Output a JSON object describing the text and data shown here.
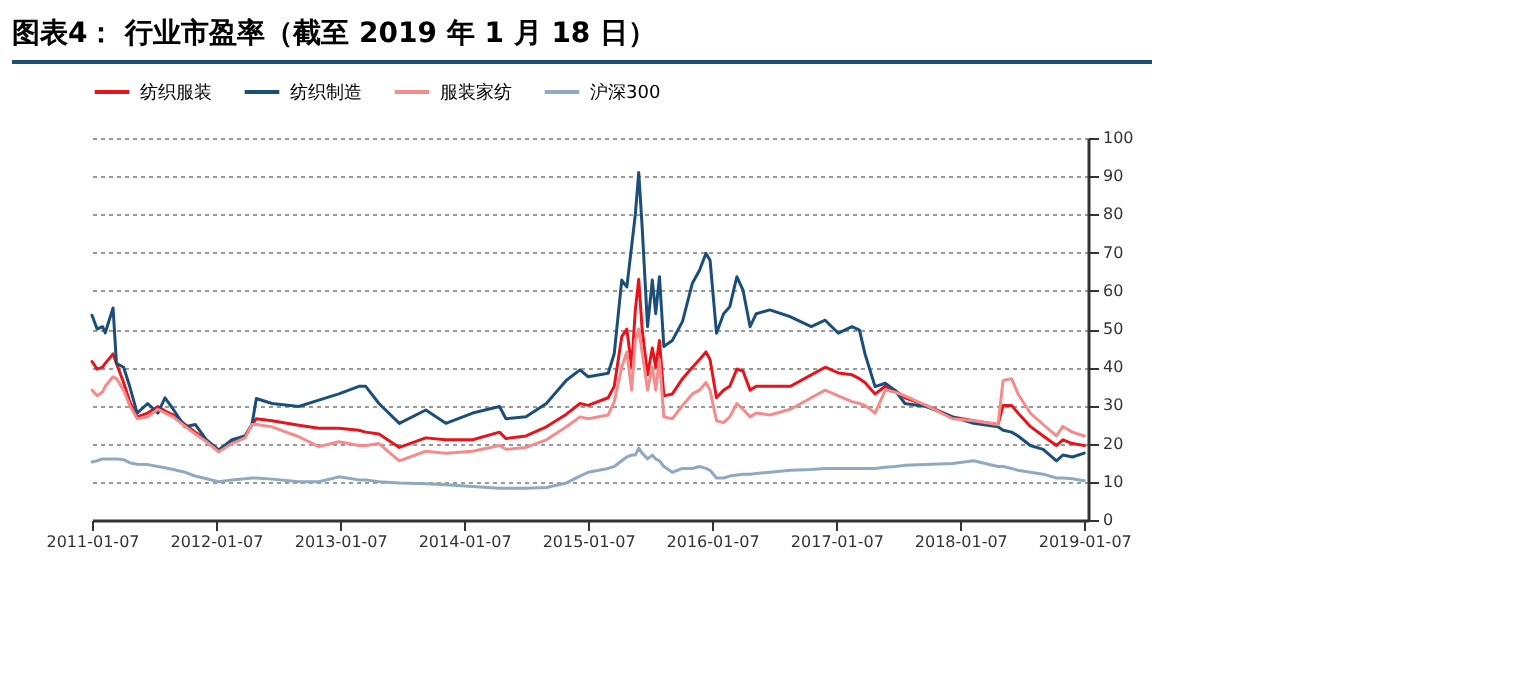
{
  "chart_data": {
    "type": "line",
    "title": "图表4： 行业市盈率（截至 2019 年 1 月 18 日）",
    "x": [
      "2011-01-07",
      "2011-01-22",
      "2011-02-07",
      "2011-02-15",
      "2011-03-10",
      "2011-03-20",
      "2011-04-10",
      "2011-04-28",
      "2011-05-20",
      "2011-06-20",
      "2011-07-20",
      "2011-08-10",
      "2011-09-03",
      "2011-10-08",
      "2011-11-07",
      "2011-12-10",
      "2012-01-15",
      "2012-02-23",
      "2012-04-02",
      "2012-04-22",
      "2012-05-05",
      "2012-06-20",
      "2012-09-07",
      "2012-11-05",
      "2013-01-03",
      "2013-03-03",
      "2013-03-23",
      "2013-05-01",
      "2013-06-30",
      "2013-09-16",
      "2013-11-14",
      "2014-02-01",
      "2014-04-21",
      "2014-05-10",
      "2014-07-08",
      "2014-09-06",
      "2014-11-04",
      "2014-12-14",
      "2015-01-07",
      "2015-03-07",
      "2015-03-25",
      "2015-04-16",
      "2015-05-01",
      "2015-05-15",
      "2015-05-26",
      "2015-06-05",
      "2015-06-15",
      "2015-07-01",
      "2015-07-15",
      "2015-07-25",
      "2015-08-05",
      "2015-08-18",
      "2015-09-12",
      "2015-10-12",
      "2015-11-10",
      "2015-12-01",
      "2015-12-20",
      "2016-01-01",
      "2016-01-20",
      "2016-02-10",
      "2016-02-28",
      "2016-03-20",
      "2016-04-07",
      "2016-04-28",
      "2016-05-16",
      "2016-06-25",
      "2016-08-25",
      "2016-10-25",
      "2016-12-05",
      "2017-01-13",
      "2017-02-22",
      "2017-03-16",
      "2017-04-01",
      "2017-05-01",
      "2017-05-31",
      "2017-06-28",
      "2017-07-28",
      "2017-09-28",
      "2017-12-15",
      "2018-02-15",
      "2018-04-28",
      "2018-05-13",
      "2018-06-07",
      "2018-06-26",
      "2018-08-01",
      "2018-09-08",
      "2018-10-17",
      "2018-11-05",
      "2018-12-03",
      "2019-01-07"
    ],
    "series": [
      {
        "name": "纺织服装",
        "color": "#e8141b",
        "values": [
          41.5,
          39.5,
          40,
          41,
          43.5,
          41,
          36,
          31,
          27,
          28,
          29.7,
          28.5,
          27.5,
          25,
          23,
          21,
          18.3,
          20.5,
          22,
          25,
          26.5,
          26,
          24.8,
          24,
          24,
          23.5,
          23,
          22.5,
          19,
          21.5,
          21,
          21,
          23,
          21.3,
          22,
          24.4,
          27.7,
          30.5,
          30,
          32,
          35,
          48,
          50,
          40,
          55,
          63,
          50,
          38,
          45,
          40,
          47,
          32.5,
          33,
          37,
          40,
          42,
          44,
          42,
          32,
          34,
          35,
          39.5,
          39,
          34,
          35,
          35,
          35,
          38,
          40,
          38.5,
          38,
          37,
          36,
          33,
          35,
          34,
          32,
          30,
          27,
          26,
          25,
          30,
          30,
          28,
          24.5,
          22,
          19.5,
          21,
          20,
          19.5
        ]
      },
      {
        "name": "纺织制造",
        "color": "#1b4f7a",
        "values": [
          53.6,
          50,
          50.6,
          49,
          55.5,
          41,
          40,
          35,
          28,
          30.5,
          28,
          32,
          29,
          24.4,
          25,
          21,
          18.3,
          21,
          22,
          25,
          31.8,
          30.5,
          29.7,
          31.4,
          33,
          35,
          35,
          30.5,
          25.3,
          28.8,
          25.3,
          28,
          29.7,
          26.5,
          27,
          30.5,
          36.6,
          39.3,
          37.5,
          38.4,
          43.6,
          62.8,
          61,
          71.6,
          80,
          91,
          76.8,
          50.6,
          62.8,
          54,
          63.7,
          45.4,
          47,
          52,
          62,
          65.4,
          69.8,
          68,
          48.9,
          54,
          55.8,
          63.7,
          60.2,
          50.6,
          54,
          55,
          53.2,
          50.6,
          52.3,
          48.9,
          50.6,
          49.7,
          43.6,
          34.9,
          35.8,
          34,
          30.5,
          29.7,
          27,
          25.3,
          24.4,
          23.5,
          23,
          22,
          19.5,
          18.5,
          15.5,
          17,
          16.5,
          17.5
        ]
      },
      {
        "name": "服装家纺",
        "color": "#f58b8b",
        "values": [
          34,
          32.5,
          33.5,
          35,
          37.5,
          37,
          34,
          30,
          26.5,
          27,
          29,
          28,
          27,
          24.5,
          22.5,
          20.5,
          17.8,
          20,
          21.5,
          25,
          25,
          24.4,
          21.8,
          19.2,
          20.5,
          19.5,
          19.5,
          20,
          15.5,
          18,
          17.5,
          18,
          19.5,
          18.5,
          19,
          21,
          24.4,
          27,
          26.5,
          27.5,
          31,
          40,
          44,
          34,
          47,
          50,
          44,
          34,
          40,
          34,
          42,
          27,
          26.5,
          30,
          33,
          34,
          36,
          34,
          26,
          25.5,
          27,
          30.5,
          29,
          27,
          28,
          27.5,
          29,
          32,
          34,
          32.5,
          31,
          30.5,
          30,
          28,
          34,
          33.5,
          32.5,
          30,
          26.5,
          26,
          25,
          36.5,
          37,
          33,
          28,
          25,
          22,
          24.5,
          23,
          22
        ]
      },
      {
        "name": "沪深300",
        "color": "#8fa9c0",
        "values": [
          15.2,
          15.5,
          16,
          16,
          16,
          16,
          15.8,
          15,
          14.6,
          14.5,
          14,
          13.7,
          13.2,
          12.5,
          11.5,
          10.8,
          10,
          10.5,
          10.8,
          11,
          11,
          10.7,
          10,
          10,
          11.3,
          10.5,
          10.5,
          10,
          9.7,
          9.5,
          9.2,
          8.8,
          8.3,
          8.3,
          8.3,
          8.5,
          9.7,
          11.5,
          12.5,
          13.5,
          14,
          15.5,
          16.5,
          17,
          17,
          18.8,
          17.5,
          16,
          17,
          16,
          15.5,
          14,
          12.5,
          13.5,
          13.5,
          14,
          13.5,
          13,
          11,
          11,
          11.5,
          11.8,
          12,
          12,
          12.2,
          12.5,
          13,
          13.2,
          13.5,
          13.5,
          13.5,
          13.5,
          13.5,
          13.5,
          13.8,
          14,
          14.3,
          14.5,
          14.8,
          15.5,
          14,
          14,
          13.5,
          13,
          12.5,
          12,
          11,
          11,
          10.8,
          10.3
        ]
      }
    ],
    "xlim": [
      "2011-01-07",
      "2019-01-18"
    ],
    "xticks": [
      "2011-01-07",
      "2012-01-07",
      "2013-01-07",
      "2014-01-07",
      "2015-01-07",
      "2016-01-07",
      "2017-01-07",
      "2018-01-07",
      "2019-01-07"
    ],
    "ylim": [
      0,
      100
    ],
    "yticks": [
      0,
      10,
      20,
      30,
      40,
      50,
      60,
      70,
      80,
      90,
      100
    ],
    "grid": "y",
    "legend": "top",
    "line_style": "solid"
  }
}
